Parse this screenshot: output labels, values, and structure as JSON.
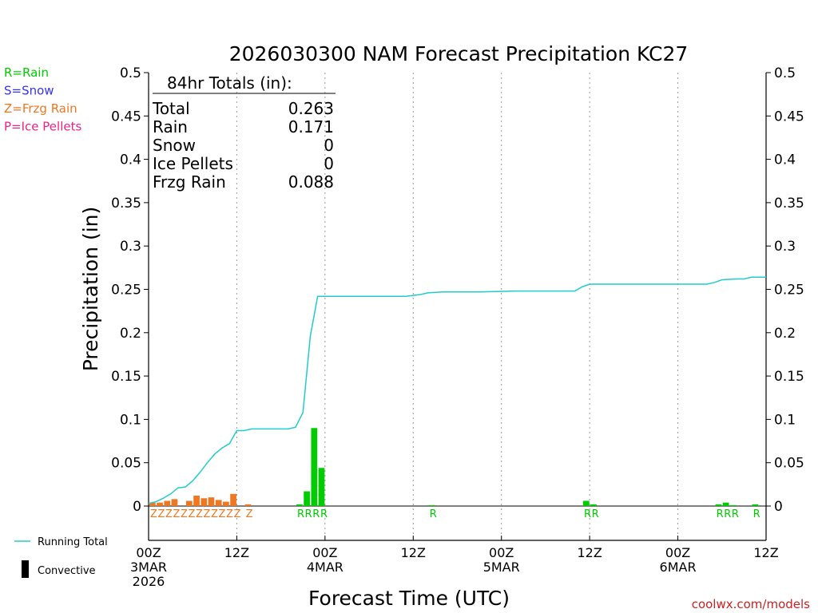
{
  "chart_data": {
    "type": "bar",
    "title": "2026030300 NAM Forecast Precipitation KC27",
    "xlabel": "Forecast Time (UTC)",
    "ylabel": "Precipitation (in)",
    "ylim": [
      0,
      0.5
    ],
    "xlim_hours": [
      0,
      84
    ],
    "y_ticks": [
      "0",
      "0.05",
      "0.1",
      "0.15",
      "0.2",
      "0.25",
      "0.3",
      "0.35",
      "0.4",
      "0.45",
      "0.5"
    ],
    "x_ticks": [
      {
        "hour": 0,
        "lines": [
          "00Z",
          "3MAR",
          "2026"
        ]
      },
      {
        "hour": 12,
        "lines": [
          "12Z"
        ]
      },
      {
        "hour": 24,
        "lines": [
          "00Z",
          "4MAR"
        ]
      },
      {
        "hour": 36,
        "lines": [
          "12Z"
        ]
      },
      {
        "hour": 48,
        "lines": [
          "00Z",
          "5MAR"
        ]
      },
      {
        "hour": 60,
        "lines": [
          "12Z"
        ]
      },
      {
        "hour": 72,
        "lines": [
          "00Z",
          "6MAR"
        ]
      },
      {
        "hour": 84,
        "lines": [
          "12Z"
        ]
      }
    ],
    "gridlines_vertical_hours": [
      12,
      24,
      36,
      48,
      60,
      72
    ],
    "ptype_legend": [
      {
        "label": "R=Rain",
        "color": "#00cc00"
      },
      {
        "label": "S=Snow",
        "color": "#3333ff"
      },
      {
        "label": "Z=Frzg Rain",
        "color": "#ee7722"
      },
      {
        "label": "P=Ice Pellets",
        "color": "#ee2288"
      }
    ],
    "totals_box": {
      "header": "84hr Totals (in):",
      "rows": [
        {
          "label": "Total",
          "value": "0.263"
        },
        {
          "label": "Rain",
          "value": "0.171"
        },
        {
          "label": "Snow",
          "value": "0"
        },
        {
          "label": "Ice Pellets",
          "value": "0"
        },
        {
          "label": "Frzg Rain",
          "value": "0.088"
        }
      ]
    },
    "series": [
      {
        "name": "Frzg Rain",
        "color": "#ee7722",
        "bars": [
          {
            "hour": 0,
            "value": 0.004
          },
          {
            "hour": 1,
            "value": 0.004
          },
          {
            "hour": 2,
            "value": 0.006
          },
          {
            "hour": 3,
            "value": 0.008
          },
          {
            "hour": 5,
            "value": 0.006
          },
          {
            "hour": 6,
            "value": 0.012
          },
          {
            "hour": 7,
            "value": 0.009
          },
          {
            "hour": 8,
            "value": 0.01
          },
          {
            "hour": 9,
            "value": 0.007
          },
          {
            "hour": 10,
            "value": 0.005
          },
          {
            "hour": 11,
            "value": 0.014
          },
          {
            "hour": 13,
            "value": 0.002
          }
        ]
      },
      {
        "name": "Rain",
        "color": "#00cc00",
        "bars": [
          {
            "hour": 20,
            "value": 0.002
          },
          {
            "hour": 21,
            "value": 0.017
          },
          {
            "hour": 22,
            "value": 0.09
          },
          {
            "hour": 23,
            "value": 0.044
          },
          {
            "hour": 38,
            "value": 0.001
          },
          {
            "hour": 59,
            "value": 0.006
          },
          {
            "hour": 60,
            "value": 0.002
          },
          {
            "hour": 77,
            "value": 0.002
          },
          {
            "hour": 78,
            "value": 0.004
          },
          {
            "hour": 79,
            "value": 0.001
          },
          {
            "hour": 82,
            "value": 0.002
          }
        ]
      },
      {
        "name": "Running Total",
        "color": "#22cccc",
        "type": "line",
        "x": [
          0,
          1,
          2,
          3,
          4,
          5,
          6,
          7,
          8,
          9,
          10,
          11,
          12,
          13,
          14,
          15,
          16,
          17,
          18,
          19,
          20,
          21,
          22,
          23,
          24,
          25,
          30,
          35,
          36,
          37,
          38,
          40,
          45,
          50,
          55,
          58,
          59,
          60,
          65,
          70,
          75,
          76,
          77,
          78,
          80,
          81,
          82,
          84
        ],
        "y": [
          0.003,
          0.005,
          0.009,
          0.014,
          0.021,
          0.022,
          0.029,
          0.039,
          0.05,
          0.06,
          0.067,
          0.072,
          0.087,
          0.087,
          0.089,
          0.089,
          0.089,
          0.089,
          0.089,
          0.089,
          0.091,
          0.108,
          0.196,
          0.242,
          0.242,
          0.242,
          0.242,
          0.242,
          0.243,
          0.244,
          0.246,
          0.247,
          0.247,
          0.248,
          0.248,
          0.248,
          0.253,
          0.256,
          0.256,
          0.256,
          0.256,
          0.256,
          0.258,
          0.261,
          0.262,
          0.262,
          0.264,
          0.264
        ]
      }
    ],
    "ptype_labels": [
      {
        "text": "ZZZZZZZZZZZZ",
        "start_hour": 0,
        "color": "#ee7722"
      },
      {
        "text": "Z",
        "start_hour": 13,
        "color": "#ee7722"
      },
      {
        "text": "RRRR",
        "start_hour": 20,
        "color": "#00cc00"
      },
      {
        "text": "R",
        "start_hour": 38,
        "color": "#00cc00"
      },
      {
        "text": "RR",
        "start_hour": 59,
        "color": "#00cc00"
      },
      {
        "text": "RRR",
        "start_hour": 77,
        "color": "#00cc00"
      },
      {
        "text": "R",
        "start_hour": 82,
        "color": "#00cc00"
      }
    ],
    "legend_items": [
      {
        "label": "Running Total",
        "symbol": "line",
        "color": "#22cccc"
      },
      {
        "label": "Convective",
        "symbol": "bar",
        "color": "#000000"
      }
    ],
    "watermark": {
      "text": "coolwx.com/models",
      "color": "#cc2222"
    }
  }
}
